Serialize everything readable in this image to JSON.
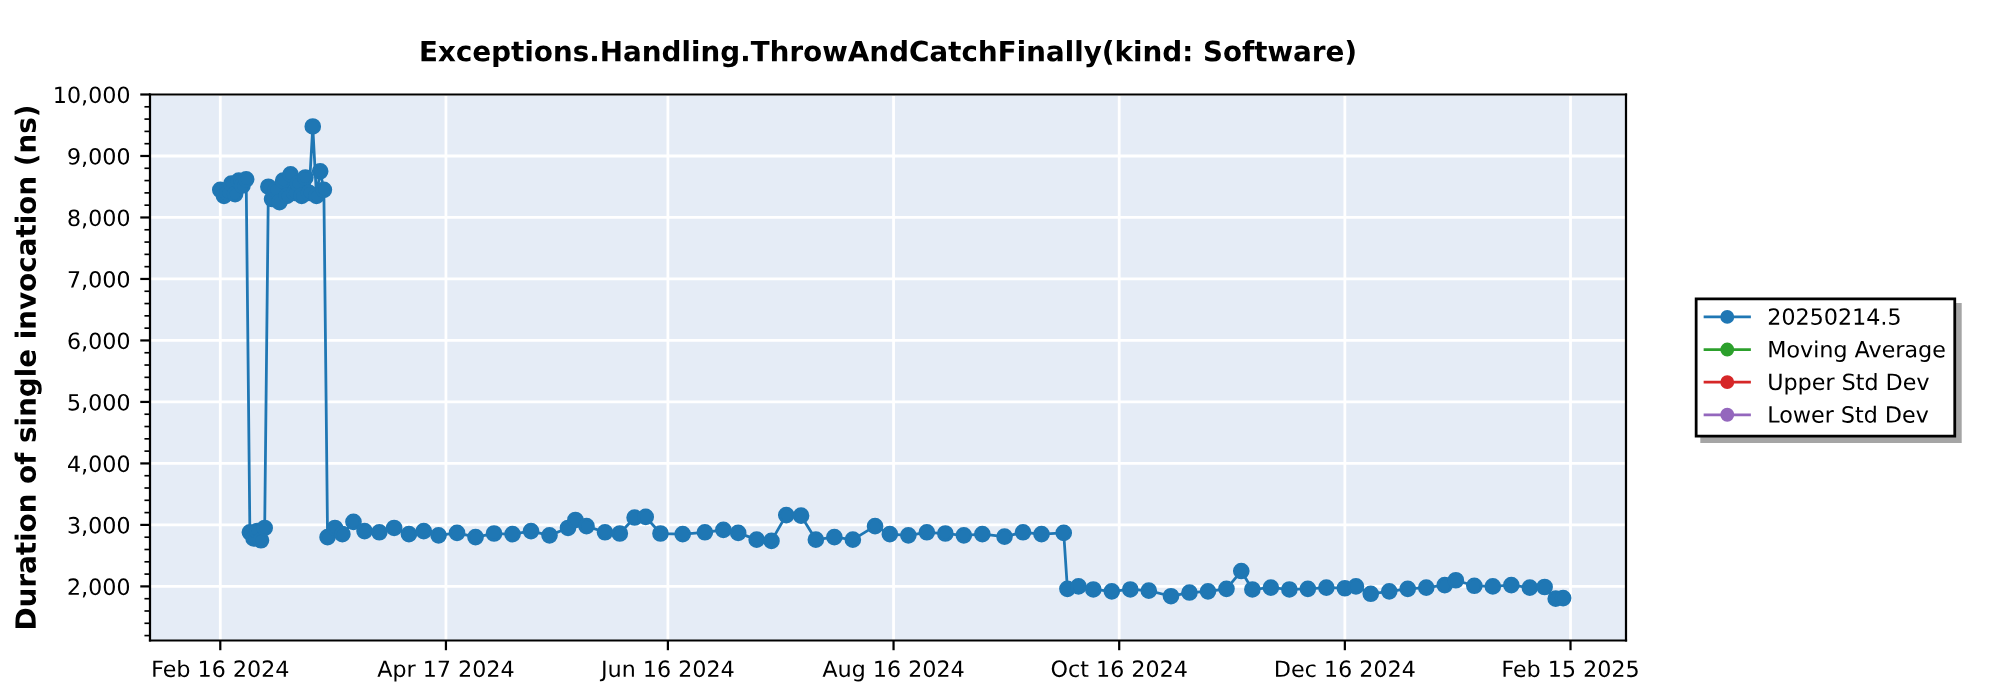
{
  "chart_data": {
    "type": "line",
    "title": "Exceptions.Handling.ThrowAndCatchFinally(kind: Software)",
    "ylabel": "Duration of single invocation (ns)",
    "x": [
      "2024-02-16",
      "2024-02-17",
      "2024-02-18",
      "2024-02-19",
      "2024-02-20",
      "2024-02-21",
      "2024-02-22",
      "2024-02-23",
      "2024-02-24",
      "2024-02-25",
      "2024-02-26",
      "2024-02-27",
      "2024-02-28",
      "2024-02-29",
      "2024-03-01",
      "2024-03-02",
      "2024-03-03",
      "2024-03-04",
      "2024-03-05",
      "2024-03-06",
      "2024-03-07",
      "2024-03-08",
      "2024-03-09",
      "2024-03-10",
      "2024-03-11",
      "2024-03-12",
      "2024-03-13",
      "2024-03-14",
      "2024-03-15",
      "2024-03-16",
      "2024-03-18",
      "2024-03-20",
      "2024-03-23",
      "2024-03-26",
      "2024-03-30",
      "2024-04-03",
      "2024-04-07",
      "2024-04-11",
      "2024-04-15",
      "2024-04-20",
      "2024-04-25",
      "2024-04-30",
      "2024-05-05",
      "2024-05-10",
      "2024-05-15",
      "2024-05-20",
      "2024-05-22",
      "2024-05-25",
      "2024-05-30",
      "2024-06-03",
      "2024-06-07",
      "2024-06-10",
      "2024-06-14",
      "2024-06-20",
      "2024-06-26",
      "2024-07-01",
      "2024-07-05",
      "2024-07-10",
      "2024-07-14",
      "2024-07-18",
      "2024-07-22",
      "2024-07-26",
      "2024-07-31",
      "2024-08-05",
      "2024-08-11",
      "2024-08-15",
      "2024-08-20",
      "2024-08-25",
      "2024-08-30",
      "2024-09-04",
      "2024-09-09",
      "2024-09-15",
      "2024-09-20",
      "2024-09-25",
      "2024-10-01",
      "2024-10-02",
      "2024-10-05",
      "2024-10-09",
      "2024-10-14",
      "2024-10-19",
      "2024-10-24",
      "2024-10-30",
      "2024-11-04",
      "2024-11-09",
      "2024-11-14",
      "2024-11-18",
      "2024-11-21",
      "2024-11-26",
      "2024-12-01",
      "2024-12-06",
      "2024-12-11",
      "2024-12-16",
      "2024-12-19",
      "2024-12-23",
      "2024-12-28",
      "2025-01-02",
      "2025-01-07",
      "2025-01-12",
      "2025-01-15",
      "2025-01-20",
      "2025-01-25",
      "2025-01-30",
      "2025-02-04",
      "2025-02-08",
      "2025-02-11",
      "2025-02-13"
    ],
    "series": [
      {
        "name": "20250214.5",
        "color": "#1f77b4",
        "values": [
          8450,
          8350,
          8400,
          8550,
          8380,
          8600,
          8520,
          8620,
          2880,
          2780,
          2900,
          2750,
          2950,
          8500,
          8300,
          8450,
          8250,
          8600,
          8350,
          8700,
          8400,
          8550,
          8350,
          8650,
          8400,
          9480,
          8350,
          8750,
          8450,
          2800,
          2950,
          2850,
          3050,
          2900,
          2880,
          2950,
          2850,
          2900,
          2830,
          2870,
          2800,
          2860,
          2850,
          2900,
          2830,
          2950,
          3080,
          2980,
          2880,
          2860,
          3120,
          3130,
          2860,
          2850,
          2880,
          2920,
          2870,
          2760,
          2740,
          3160,
          3150,
          2760,
          2800,
          2760,
          2980,
          2850,
          2830,
          2880,
          2860,
          2830,
          2850,
          2810,
          2880,
          2850,
          2870,
          1960,
          2000,
          1950,
          1920,
          1950,
          1930,
          1840,
          1900,
          1920,
          1960,
          2250,
          1950,
          1980,
          1950,
          1960,
          1980,
          1970,
          2000,
          1880,
          1920,
          1960,
          1980,
          2020,
          2100,
          2010,
          2000,
          2020,
          1980,
          1990,
          1800,
          1810
        ]
      },
      {
        "name": "Moving Average",
        "color": "#2ca02c",
        "values": [
          null,
          null,
          null,
          null,
          null,
          null,
          null,
          null,
          null,
          null,
          null,
          null,
          null,
          null,
          null,
          null,
          null,
          null,
          null,
          null,
          null,
          null,
          null,
          null,
          null,
          null,
          null,
          null,
          null,
          null,
          null,
          null,
          null,
          null,
          null,
          null,
          null,
          null,
          null,
          null,
          null,
          null,
          null,
          null,
          null,
          null,
          null,
          null,
          null,
          null,
          null,
          null,
          null,
          null,
          null,
          null,
          null,
          null,
          null,
          null,
          null,
          null,
          null,
          null,
          null,
          null,
          null,
          null,
          null,
          null,
          null,
          null,
          null,
          null,
          null,
          null,
          null,
          null,
          null,
          null,
          null,
          null,
          null,
          null,
          null,
          null,
          null,
          null,
          null,
          null,
          null,
          null,
          null,
          null,
          null,
          null,
          null,
          null,
          null,
          null,
          null,
          null,
          null,
          null,
          null,
          null
        ]
      },
      {
        "name": "Upper Std Dev",
        "color": "#d62728",
        "values": [
          null,
          null,
          null,
          null,
          null,
          null,
          null,
          null,
          null,
          null,
          null,
          null,
          null,
          null,
          null,
          null,
          null,
          null,
          null,
          null,
          null,
          null,
          null,
          null,
          null,
          null,
          null,
          null,
          null,
          null,
          null,
          null,
          null,
          null,
          null,
          null,
          null,
          null,
          null,
          null,
          null,
          null,
          null,
          null,
          null,
          null,
          null,
          null,
          null,
          null,
          null,
          null,
          null,
          null,
          null,
          null,
          null,
          null,
          null,
          null,
          null,
          null,
          null,
          null,
          null,
          null,
          null,
          null,
          null,
          null,
          null,
          null,
          null,
          null,
          null,
          null,
          null,
          null,
          null,
          null,
          null,
          null,
          null,
          null,
          null,
          null,
          null,
          null,
          null,
          null,
          null,
          null,
          null,
          null,
          null,
          null,
          null,
          null,
          null,
          null,
          null,
          null,
          null,
          null,
          null,
          null
        ]
      },
      {
        "name": "Lower Std Dev",
        "color": "#9467bd",
        "values": [
          null,
          null,
          null,
          null,
          null,
          null,
          null,
          null,
          null,
          null,
          null,
          null,
          null,
          null,
          null,
          null,
          null,
          null,
          null,
          null,
          null,
          null,
          null,
          null,
          null,
          null,
          null,
          null,
          null,
          null,
          null,
          null,
          null,
          null,
          null,
          null,
          null,
          null,
          null,
          null,
          null,
          null,
          null,
          null,
          null,
          null,
          null,
          null,
          null,
          null,
          null,
          null,
          null,
          null,
          null,
          null,
          null,
          null,
          null,
          null,
          null,
          null,
          null,
          null,
          null,
          null,
          null,
          null,
          null,
          null,
          null,
          null,
          null,
          null,
          null,
          null,
          null,
          null,
          null,
          null,
          null,
          null,
          null,
          null,
          null,
          null,
          null,
          null,
          null,
          null,
          null,
          null,
          null,
          null,
          null,
          null,
          null,
          null,
          null,
          null,
          null,
          null,
          null,
          null,
          null,
          null
        ]
      }
    ],
    "xlim": [
      "2024-01-28",
      "2025-03-02"
    ],
    "xticks": [
      {
        "value": "2024-02-16",
        "label": "Feb 16 2024"
      },
      {
        "value": "2024-04-17",
        "label": "Apr 17 2024"
      },
      {
        "value": "2024-06-16",
        "label": "Jun 16 2024"
      },
      {
        "value": "2024-08-16",
        "label": "Aug 16 2024"
      },
      {
        "value": "2024-10-16",
        "label": "Oct 16 2024"
      },
      {
        "value": "2024-12-16",
        "label": "Dec 16 2024"
      },
      {
        "value": "2025-02-15",
        "label": "Feb 15 2025"
      }
    ],
    "ylim": [
      1120,
      10000
    ],
    "yticks": [
      {
        "value": 2000,
        "label": "2,000"
      },
      {
        "value": 3000,
        "label": "3,000"
      },
      {
        "value": 4000,
        "label": "4,000"
      },
      {
        "value": 5000,
        "label": "5,000"
      },
      {
        "value": 6000,
        "label": "6,000"
      },
      {
        "value": 7000,
        "label": "7,000"
      },
      {
        "value": 8000,
        "label": "8,000"
      },
      {
        "value": 9000,
        "label": "9,000"
      },
      {
        "value": 10000,
        "label": "10,000"
      }
    ],
    "grid": true,
    "legend": "right",
    "marker": "circle",
    "line_style": "solid"
  }
}
